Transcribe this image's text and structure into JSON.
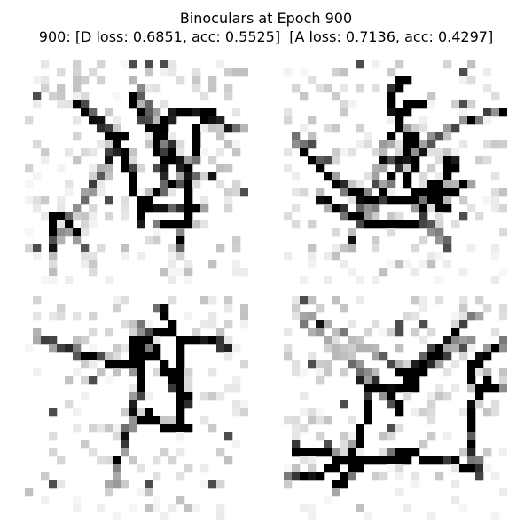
{
  "figure": {
    "title": "Binoculars at Epoch 900",
    "subtitle": "900: [D loss: 0.6851, acc: 0.5525]  [A loss: 0.7136, acc: 0.4297]",
    "metrics": {
      "epoch": 900,
      "d_loss": 0.6851,
      "d_acc": 0.5525,
      "a_loss": 0.7136,
      "a_acc": 0.4297
    }
  },
  "samples": {
    "count": 4,
    "resolution": 28,
    "colormap": "grayscale-inverted",
    "ink_color": "#000000",
    "paper_color": "#ffffff"
  }
}
